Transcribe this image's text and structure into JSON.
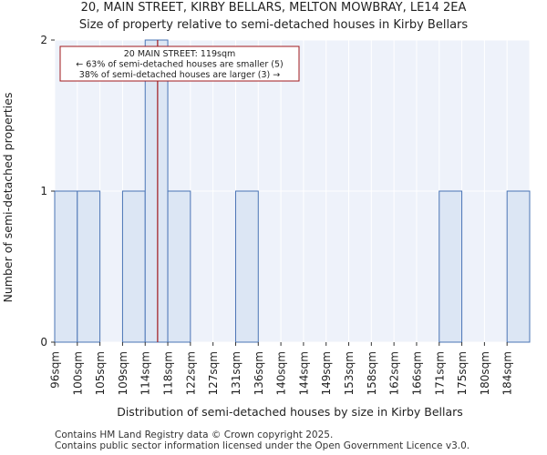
{
  "chart_data": {
    "type": "bar",
    "title": "20, MAIN STREET, KIRBY BELLARS, MELTON MOWBRAY, LE14 2EA",
    "subtitle": "Size of property relative to semi-detached houses in Kirby Bellars",
    "xlabel": "Distribution of semi-detached houses by size in Kirby Bellars",
    "ylabel": "Number of semi-detached properties",
    "categories": [
      "96sqm",
      "100sqm",
      "105sqm",
      "109sqm",
      "114sqm",
      "118sqm",
      "122sqm",
      "127sqm",
      "131sqm",
      "136sqm",
      "140sqm",
      "144sqm",
      "149sqm",
      "153sqm",
      "158sqm",
      "162sqm",
      "166sqm",
      "171sqm",
      "175sqm",
      "180sqm",
      "184sqm"
    ],
    "values": [
      1,
      1,
      0,
      1,
      2,
      1,
      0,
      0,
      1,
      0,
      0,
      0,
      0,
      0,
      0,
      0,
      0,
      1,
      0,
      0,
      1
    ],
    "ylim": [
      0,
      2
    ],
    "yticks": [
      0,
      1,
      2
    ],
    "grid": true,
    "bar_fill": "#dce6f4",
    "bar_edge": "#4a74b5",
    "marker": {
      "value_bin": 4.55,
      "color": "#a0181c",
      "annotation": [
        "20 MAIN STREET: 119sqm",
        "← 63% of semi-detached houses are smaller (5)",
        "38% of semi-detached houses are larger (3) →"
      ]
    }
  },
  "footer": {
    "line1": "Contains HM Land Registry data © Crown copyright 2025.",
    "line2": "Contains public sector information licensed under the Open Government Licence v3.0."
  }
}
